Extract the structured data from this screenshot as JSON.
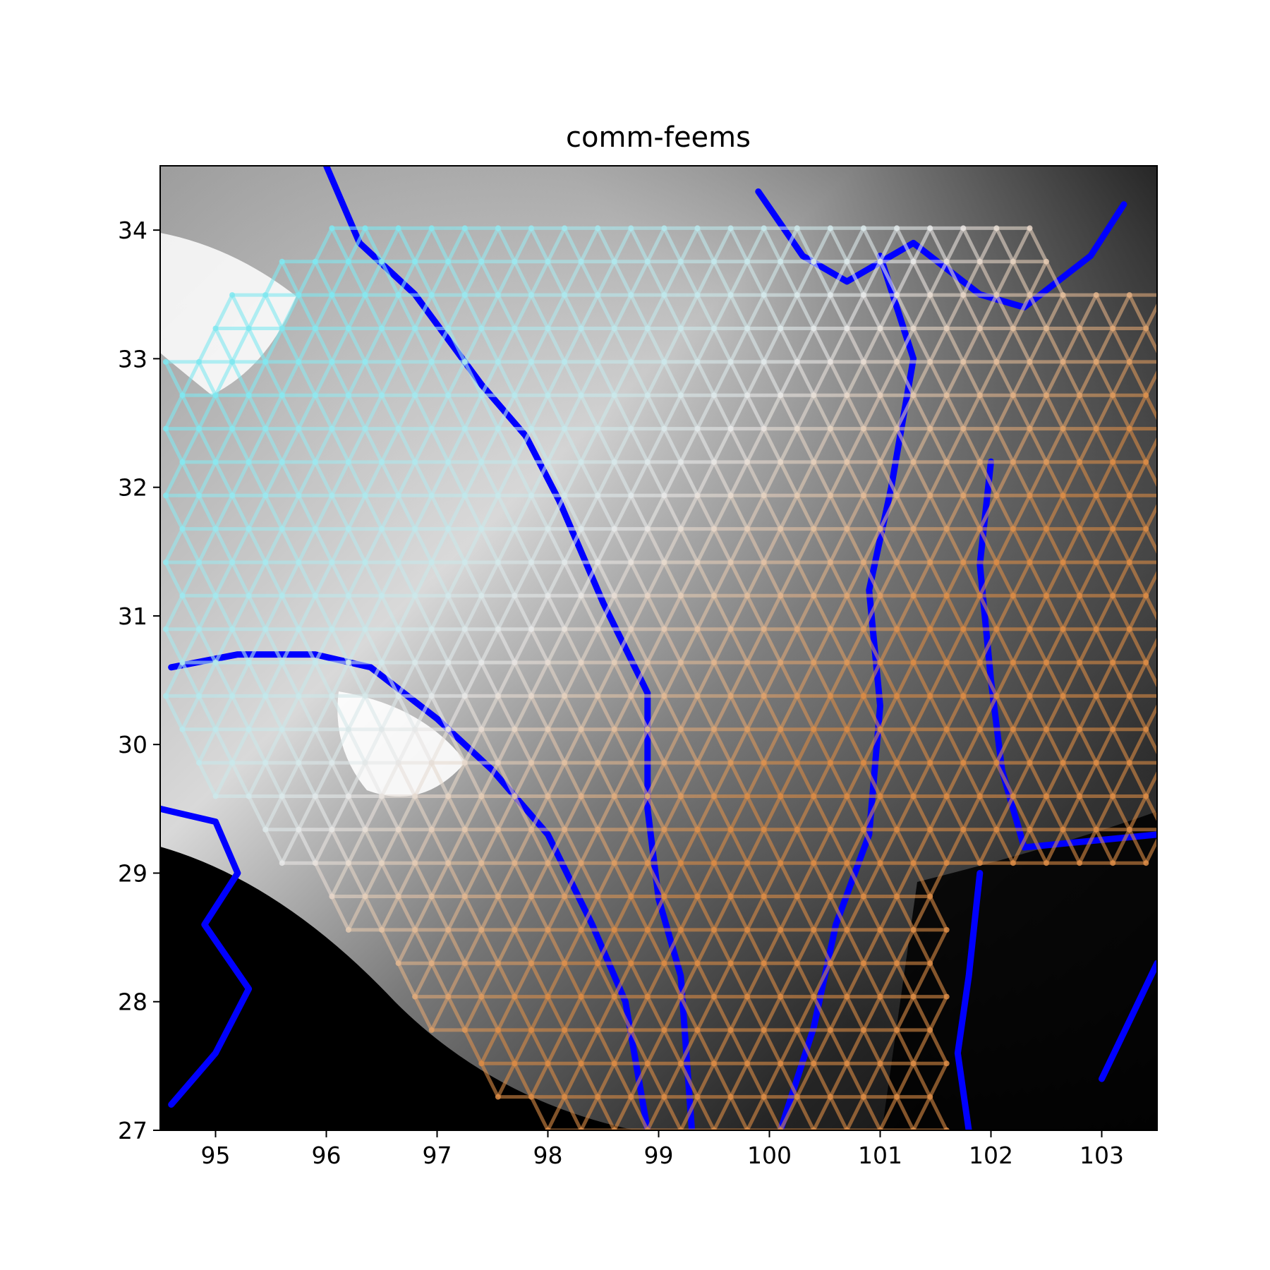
{
  "title": "comm-feems",
  "colors": {
    "river": "#0000ff",
    "grid_north": "#7fe7f0",
    "grid_middle": "#e6e6e6",
    "grid_south": "#d98b45",
    "terrain_low": "#000000",
    "terrain_high": "#ffffff"
  },
  "chart_data": {
    "type": "map",
    "title": "comm-feems",
    "xlim": [
      94.5,
      103.5
    ],
    "ylim": [
      27,
      34.5
    ],
    "x_ticks": [
      "95",
      "96",
      "97",
      "98",
      "99",
      "100",
      "101",
      "102",
      "103"
    ],
    "y_ticks": [
      "27",
      "28",
      "29",
      "30",
      "31",
      "32",
      "33",
      "34"
    ],
    "background": "grayscale elevation with blue river network",
    "overlay": "triangular lattice graph; nodes colored cyan in the north-west, white in the middle, orange in the south-east",
    "grid_on": false,
    "legend": "none"
  }
}
